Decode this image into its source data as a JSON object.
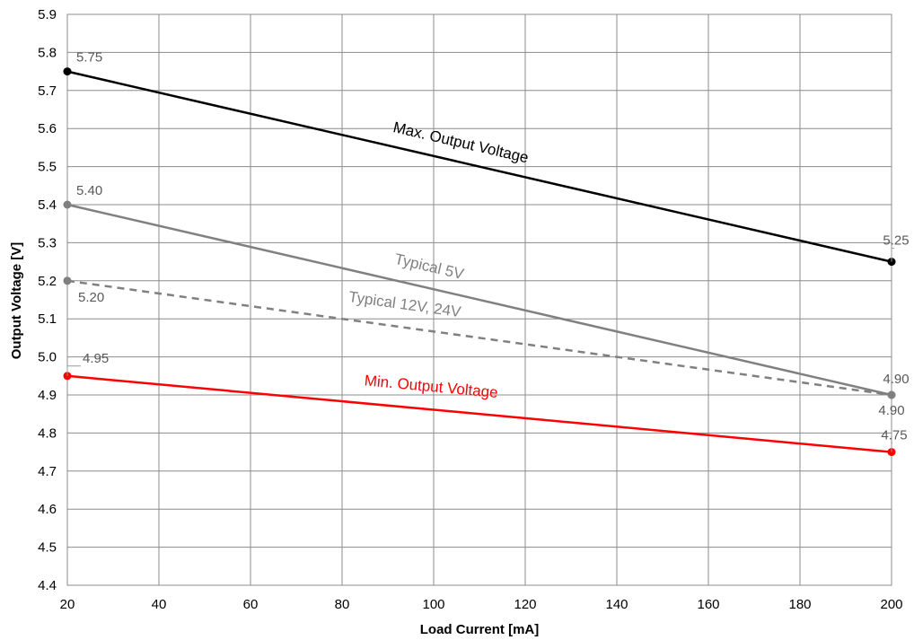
{
  "chart_data": {
    "type": "line",
    "xlabel": "Load Current [mA]",
    "ylabel": "Output Voltage [V]",
    "xlim": [
      20,
      200
    ],
    "ylim": [
      4.4,
      5.9
    ],
    "x_ticks": [
      "20",
      "40",
      "60",
      "80",
      "100",
      "120",
      "140",
      "160",
      "180",
      "200"
    ],
    "y_ticks": [
      "4.4",
      "4.5",
      "4.6",
      "4.7",
      "4.8",
      "4.9",
      "5.0",
      "5.1",
      "5.2",
      "5.3",
      "5.4",
      "5.5",
      "5.6",
      "5.7",
      "5.8",
      "5.9"
    ],
    "grid": true,
    "series": [
      {
        "name": "Max. Output Voltage",
        "color": "#000000",
        "dashed": false,
        "x": [
          20,
          200
        ],
        "y": [
          5.75,
          5.25
        ],
        "point_labels": [
          "5.75",
          "5.25"
        ]
      },
      {
        "name": "Typical 5V",
        "color": "#808080",
        "dashed": false,
        "x": [
          20,
          200
        ],
        "y": [
          5.4,
          4.9
        ],
        "point_labels": [
          "5.40",
          "4.90"
        ]
      },
      {
        "name": "Typical 12V, 24V",
        "color": "#808080",
        "dashed": true,
        "x": [
          20,
          200
        ],
        "y": [
          5.2,
          4.9
        ],
        "point_labels": [
          "5.20",
          "4.90"
        ]
      },
      {
        "name": "Min. Output Voltage",
        "color": "#ff0000",
        "dashed": false,
        "x": [
          20,
          200
        ],
        "y": [
          4.95,
          4.75
        ],
        "point_labels": [
          "4.95",
          "4.75"
        ]
      }
    ]
  }
}
